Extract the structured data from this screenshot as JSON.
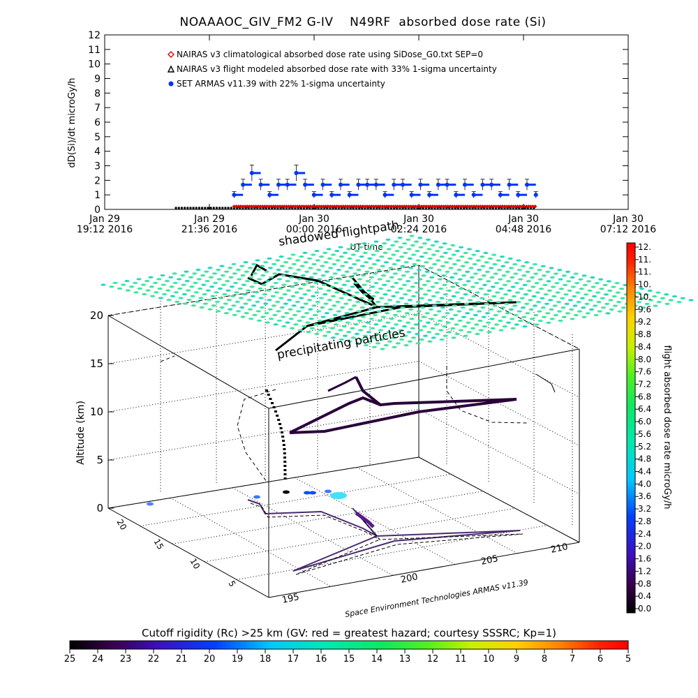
{
  "title": "NOAAAOC_GIV_FM2 G-IV    N49RF  absorbed dose rate (Si)",
  "chart_data": [
    {
      "type": "scatter",
      "ylabel": "dD(Si)/dt microGy/h",
      "xlabel": "UT time",
      "ylim": [
        0,
        12
      ],
      "yticks": [
        "0",
        "1",
        "2",
        "3",
        "4",
        "5",
        "6",
        "7",
        "8",
        "9",
        "10",
        "11",
        "12"
      ],
      "xticks": [
        {
          "date": "Jan 29",
          "time": "19:12 2016"
        },
        {
          "date": "Jan 29",
          "time": "21:36 2016"
        },
        {
          "date": "Jan 30",
          "time": "00:00 2016"
        },
        {
          "date": "Jan 30",
          "time": "02:24 2016"
        },
        {
          "date": "Jan 30",
          "time": "04:48 2016"
        },
        {
          "date": "Jan 30",
          "time": "07:12 2016"
        }
      ],
      "legend": [
        {
          "name": "NAIRAS v3 climatological absorbed dose rate using SiDose_G0.txt SEP=0",
          "color": "#e00000",
          "marker": "diamond"
        },
        {
          "name": "NAIRAS v3 flight modeled absorbed dose rate with 33% 1-sigma uncertainty",
          "color": "#000000",
          "marker": "triangle"
        },
        {
          "name": "SET ARMAS v11.39 with 22% 1-sigma uncertainty",
          "color": "#0033ff",
          "marker": "circle"
        }
      ],
      "series": [
        {
          "name": "NAIRAS v3 climatological absorbed dose rate using SiDose_G0.txt SEP=0",
          "time_range": [
            "Jan 29 22:10",
            "Jan 30 05:05"
          ],
          "values_approx": 0.2
        },
        {
          "name": "NAIRAS v3 flight modeled absorbed dose rate with 33% 1-sigma uncertainty",
          "time_range": [
            "Jan 29 20:50",
            "Jan 30 05:05"
          ],
          "values_approx": 0.1
        },
        {
          "name": "SET ARMAS v11.39 with 22% 1-sigma uncertainty",
          "time_range": [
            "Jan 29 22:10",
            "Jan 30 05:05"
          ],
          "values_approx": [
            1.0,
            1.7,
            2.5,
            1.7,
            1.0,
            1.7,
            1.7,
            2.5,
            1.7,
            1.0,
            1.7,
            1.0,
            1.7,
            1.0,
            1.7,
            1.7,
            1.7,
            1.0,
            1.7,
            1.7,
            1.0,
            1.7,
            1.0,
            1.7,
            1.7,
            1.0,
            1.7,
            1.0,
            1.7,
            1.7,
            1.0,
            1.7,
            1.0,
            1.7,
            1.0
          ]
        }
      ]
    },
    {
      "type": "scatter",
      "subtype": "3d-flight-track",
      "zlabel": "Altitude (km)",
      "zticks": [
        "0",
        "5",
        "10",
        "15",
        "20"
      ],
      "ticks_left": [
        "5",
        "10",
        "15",
        "20"
      ],
      "ticks_right": [
        "195",
        "200",
        "205",
        "210"
      ],
      "axis_caption": "Space Environment Technologies ARMAS v11.39",
      "annotations": [
        "shadowed flightpath",
        "precipitating particles"
      ],
      "colorbar_right": {
        "label": "flight absorbed dose rate microGy/h",
        "ticks": [
          "12.",
          "11.",
          "11.",
          "10.",
          "10.",
          "9.6",
          "9.2",
          "8.8",
          "8.4",
          "8.0",
          "7.6",
          "7.2",
          "6.8",
          "6.4",
          "6.0",
          "5.6",
          "5.2",
          "4.8",
          "4.4",
          "4.0",
          "3.6",
          "3.2",
          "2.8",
          "2.4",
          "2.0",
          "1.6",
          "1.2",
          "0.8",
          "0.4",
          "0.0"
        ],
        "range": [
          0,
          12
        ]
      },
      "colorbar_bottom": {
        "label": "Cutoff rigidity (Rc) >25 km (GV: red = greatest hazard; courtesy SSSRC; Kp=1)",
        "ticks": [
          "25",
          "24",
          "23",
          "22",
          "21",
          "20",
          "19",
          "18",
          "17",
          "16",
          "15",
          "14",
          "13",
          "12",
          "11",
          "10",
          "9",
          "8",
          "7",
          "6",
          "5"
        ],
        "range": [
          25,
          5
        ]
      }
    }
  ]
}
